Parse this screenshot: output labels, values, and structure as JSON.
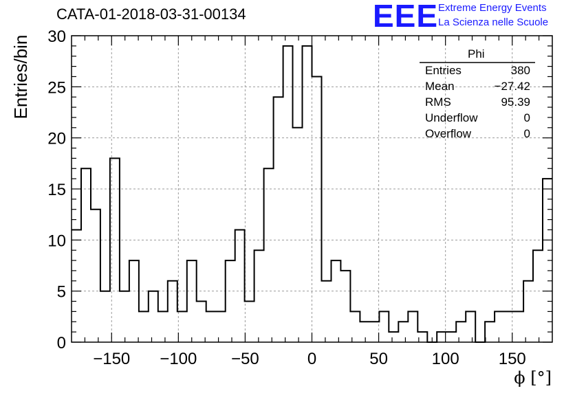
{
  "header": {
    "run_title": "CATA-01-2018-03-31-00134",
    "logo_text": "EEE",
    "logo_line1": "Extreme Energy Events",
    "logo_line2": "La Scienza nelle Scuole",
    "brand_color": "#1a1aff"
  },
  "stats": {
    "name": "Phi",
    "rows": [
      {
        "label": "Entries",
        "value": "380"
      },
      {
        "label": "Mean",
        "value": "−27.42"
      },
      {
        "label": "RMS",
        "value": "95.39"
      },
      {
        "label": "Underflow",
        "value": "0"
      },
      {
        "label": "Overflow",
        "value": "0"
      }
    ]
  },
  "chart_data": {
    "type": "histogram",
    "title": "CATA-01-2018-03-31-00134",
    "xlabel": "ϕ [°]",
    "ylabel": "Entries/bin",
    "xlim": [
      -180,
      180
    ],
    "ylim": [
      0,
      30
    ],
    "bin_width": 7.2,
    "grid": true,
    "x_ticks": [
      -150,
      -100,
      -50,
      0,
      50,
      100,
      150
    ],
    "x_tick_labels": [
      "−150",
      "−100",
      "−50",
      "0",
      "50",
      "100",
      "150"
    ],
    "y_ticks": [
      0,
      5,
      10,
      15,
      20,
      25,
      30
    ],
    "y_tick_labels": [
      "0",
      "5",
      "10",
      "15",
      "20",
      "25",
      "30"
    ],
    "values": [
      11,
      17,
      13,
      5,
      18,
      5,
      8,
      3,
      5,
      3,
      6,
      3,
      8,
      4,
      3,
      3,
      8,
      11,
      4,
      9,
      17,
      24,
      29,
      21,
      29,
      26,
      6,
      8,
      7,
      3,
      2,
      2,
      3,
      1,
      2,
      3,
      1,
      0,
      1,
      1,
      2,
      3,
      0,
      2,
      3,
      3,
      3,
      6,
      9,
      16
    ]
  }
}
